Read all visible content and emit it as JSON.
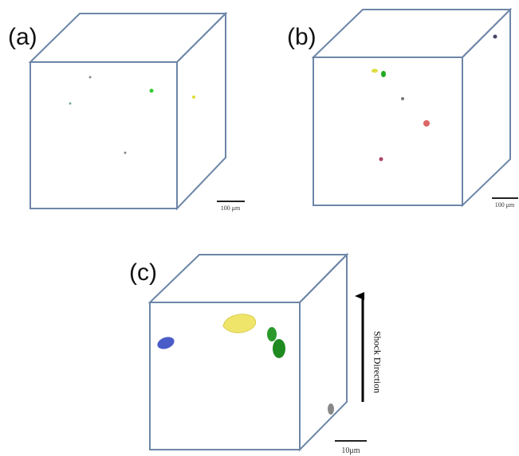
{
  "panels": [
    {
      "label": "(a)",
      "scale_bar": "100 μm"
    },
    {
      "label": "(b)",
      "scale_bar": "100 μm"
    },
    {
      "label": "(c)",
      "scale_bar": "10μm"
    }
  ],
  "annotation": "Shock Direction"
}
